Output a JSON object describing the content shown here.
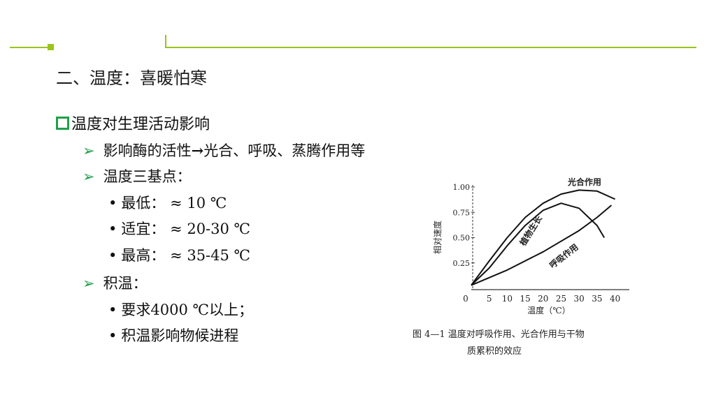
{
  "slide": {
    "title": "二、温度：喜暖怕寒",
    "heading": "温度对生理活动影响",
    "items": [
      {
        "level": 1,
        "text": "影响酶的活性",
        "arrow": "→",
        "text2": "光合、呼吸、蒸腾作用等"
      },
      {
        "level": 1,
        "text": "温度三基点："
      },
      {
        "level": 2,
        "text": "最低：  ≈ 10 ℃"
      },
      {
        "level": 2,
        "text": "适宜：  ≈ 20-30 ℃"
      },
      {
        "level": 2,
        "text": "最高：  ≈ 35-45 ℃"
      },
      {
        "level": 1,
        "text": "积温："
      },
      {
        "level": 2,
        "text": "要求4000 ℃以上；"
      },
      {
        "level": 2,
        "text": "积温影响物候进程"
      }
    ],
    "bullet_l1": "➢",
    "bullet_l2": "•",
    "accent_color": "#9bc31c",
    "bullet_color": "#1fa04a"
  },
  "chart_data": {
    "type": "line",
    "xlabel": "温度（℃）",
    "ylabel": "相对速度",
    "x_ticks": [
      "0",
      "5",
      "10",
      "15",
      "20",
      "25",
      "30",
      "35",
      "40"
    ],
    "y_ticks": [
      "0.25",
      "0.50",
      "0.75",
      "1.00"
    ],
    "xlim": [
      0,
      43
    ],
    "ylim": [
      0,
      1.05
    ],
    "caption_line1": "图 4—1   温度对呼吸作用、光合作用与干物",
    "caption_line2": "质累积的效应",
    "series": [
      {
        "name": "光合作用",
        "points": [
          [
            0,
            0.03
          ],
          [
            5,
            0.27
          ],
          [
            10,
            0.5
          ],
          [
            15,
            0.7
          ],
          [
            20,
            0.84
          ],
          [
            25,
            0.93
          ],
          [
            30,
            0.97
          ],
          [
            35,
            0.96
          ],
          [
            40,
            0.88
          ]
        ]
      },
      {
        "name": "植物生长",
        "points": [
          [
            0,
            0.03
          ],
          [
            5,
            0.2
          ],
          [
            10,
            0.42
          ],
          [
            15,
            0.62
          ],
          [
            20,
            0.77
          ],
          [
            25,
            0.84
          ],
          [
            30,
            0.79
          ],
          [
            35,
            0.62
          ],
          [
            37,
            0.5
          ]
        ]
      },
      {
        "name": "呼吸作用",
        "points": [
          [
            0,
            0.03
          ],
          [
            10,
            0.18
          ],
          [
            20,
            0.36
          ],
          [
            30,
            0.57
          ],
          [
            35,
            0.7
          ],
          [
            39,
            0.82
          ]
        ]
      }
    ]
  }
}
